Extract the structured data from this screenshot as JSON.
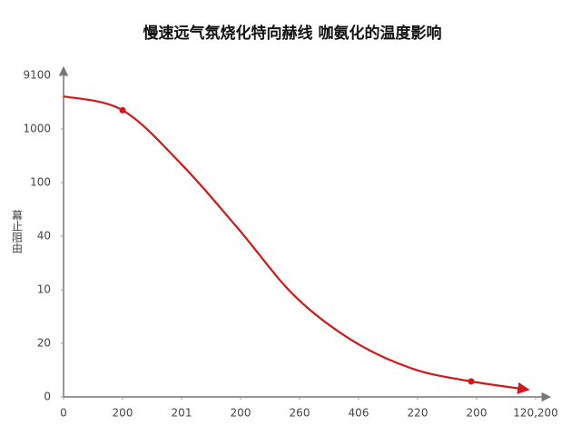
{
  "chart_data": {
    "type": "line",
    "title": "慢速远气氛烧化特向赫线 咖氨化的温度影响",
    "y_label": "幕止阻由",
    "x": [
      0,
      25,
      50,
      73.8,
      98,
      123,
      148,
      172.7,
      197
    ],
    "series": [
      {
        "color": "#d01818",
        "values": [
          112.2,
          107,
          86.8,
          63,
          37.6,
          20.7,
          10.5,
          5.8,
          2.7
        ]
      }
    ],
    "xlim": [
      0,
      206
    ],
    "xticks": [
      0,
      {
        "value": 25,
        "label": "200"
      },
      {
        "value": 50,
        "label": "201"
      },
      {
        "value": 75,
        "label": "200"
      },
      {
        "value": 100,
        "label": "260"
      },
      {
        "value": 125,
        "label": "406"
      },
      {
        "value": 150,
        "label": "220"
      },
      {
        "value": 175,
        "label": "200"
      },
      {
        "value": 200,
        "label": "120,200"
      }
    ],
    "ylim": [
      0,
      122
    ],
    "yticks": [
      0,
      20,
      {
        "value": 40,
        "label": "10"
      },
      {
        "value": 60,
        "label": "40"
      },
      {
        "value": 80,
        "label": "100"
      },
      {
        "value": 100,
        "label": "1000"
      },
      {
        "value": 120,
        "label": "9100"
      }
    ],
    "grid": false
  }
}
